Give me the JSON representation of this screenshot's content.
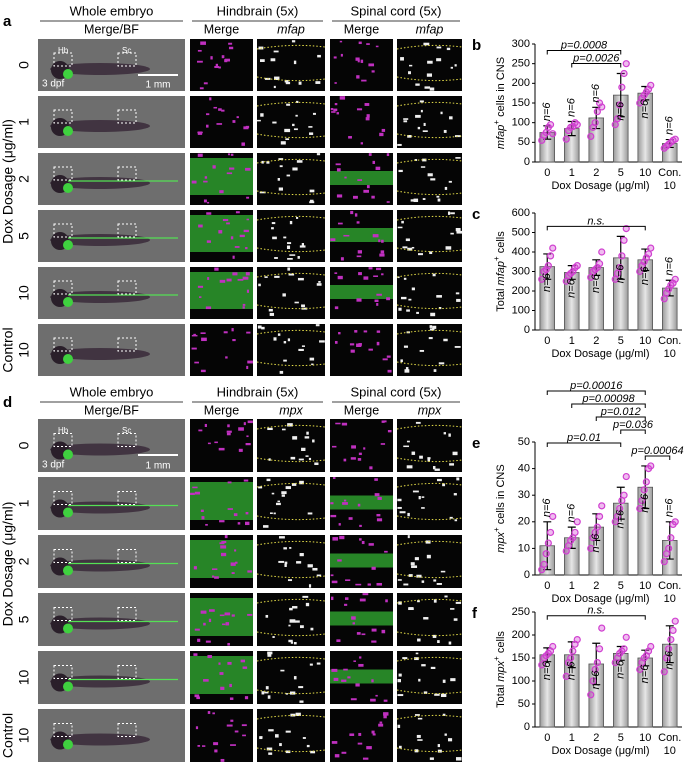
{
  "figure": {
    "panels": [
      {
        "letter": "a",
        "headers": [
          "Whole embryo",
          "Hindbrain (5x)",
          "Spinal cord (5x)"
        ],
        "subheaders": [
          "Merge/BF",
          "Merge",
          "mfap",
          "Merge",
          "mfap"
        ],
        "axis_label": "Dox Dosage (μg/ml)",
        "rows": [
          "0",
          "1",
          "2",
          "5",
          "10",
          "10"
        ],
        "control_label": "Control",
        "image_labels": [
          "Hb",
          "Sc",
          "3 dpf",
          "1 mm"
        ]
      },
      {
        "letter": "d",
        "headers": [
          "Whole embryo",
          "Hindbrain (5x)",
          "Spinal cord (5x)"
        ],
        "subheaders": [
          "Merge/BF",
          "Merge",
          "mpx",
          "Merge",
          "mpx"
        ],
        "axis_label": "Dox Dosage (μg/ml)",
        "rows": [
          "0",
          "1",
          "2",
          "5",
          "10",
          "10"
        ],
        "control_label": "Control",
        "image_labels": [
          "Hb",
          "Sc",
          "3 dpf",
          "1 mm"
        ]
      }
    ]
  },
  "chart_data": [
    {
      "type": "bar",
      "panel": "b",
      "ylabel": [
        {
          "text": "mfap",
          "style": "italic"
        },
        {
          "text": "+",
          "style": "sup"
        },
        {
          "text": " cells in CNS"
        }
      ],
      "xlabel": "Dox Dosage (μg/ml)",
      "categories": [
        "0",
        "1",
        "2",
        "5",
        "10",
        "Con."
      ],
      "category_sublabels": [
        null,
        null,
        null,
        null,
        null,
        "10"
      ],
      "values": [
        75,
        85,
        112,
        170,
        175,
        47
      ],
      "errors": [
        17,
        18,
        27,
        55,
        17,
        10
      ],
      "points": [
        [
          55,
          68,
          75,
          88,
          95,
          72
        ],
        [
          58,
          80,
          88,
          90,
          100,
          95
        ],
        [
          65,
          88,
          100,
          128,
          150,
          140
        ],
        [
          95,
          110,
          145,
          190,
          225,
          250
        ],
        [
          150,
          162,
          170,
          178,
          185,
          195
        ],
        [
          35,
          40,
          45,
          50,
          55,
          58
        ]
      ],
      "n_labels": [
        "n=6",
        "n=6",
        "n=6",
        "n=6",
        "n=6",
        "n=6"
      ],
      "brackets": [
        {
          "label": "p=0.0008",
          "from": "0",
          "to": "5"
        },
        {
          "label": "p=0.0026",
          "from": "1",
          "to": "5"
        }
      ],
      "ylim": [
        0,
        300
      ],
      "yticks": [
        0,
        50,
        100,
        150,
        200,
        250,
        300
      ],
      "color": "#c8c8c8",
      "point_color": "#d040d0"
    },
    {
      "type": "bar",
      "panel": "c",
      "ylabel": [
        {
          "text": "Total "
        },
        {
          "text": "mfap",
          "style": "italic"
        },
        {
          "text": "+",
          "style": "sup"
        },
        {
          "text": " cells"
        }
      ],
      "xlabel": "Dox Dosage (μg/ml)",
      "categories": [
        "0",
        "1",
        "2",
        "5",
        "10",
        "Con."
      ],
      "category_sublabels": [
        null,
        null,
        null,
        null,
        null,
        "10"
      ],
      "values": [
        325,
        295,
        320,
        370,
        360,
        215
      ],
      "errors": [
        65,
        35,
        40,
        110,
        55,
        40
      ],
      "points": [
        [
          260,
          300,
          310,
          330,
          380,
          420
        ],
        [
          250,
          280,
          290,
          300,
          320,
          330
        ],
        [
          270,
          300,
          310,
          320,
          340,
          400
        ],
        [
          260,
          290,
          320,
          380,
          460,
          520
        ],
        [
          300,
          330,
          350,
          370,
          390,
          420
        ],
        [
          160,
          190,
          210,
          230,
          240,
          260
        ]
      ],
      "n_labels": [
        "n=6",
        "n=6",
        "n=6",
        "n=6",
        "n=6",
        "n=6"
      ],
      "brackets": [
        {
          "label": "n.s.",
          "from": "0",
          "to": "10"
        }
      ],
      "ylim": [
        0,
        600
      ],
      "yticks": [
        0,
        100,
        200,
        300,
        400,
        500,
        600
      ],
      "color": "#c8c8c8",
      "point_color": "#d040d0"
    },
    {
      "type": "bar",
      "panel": "e",
      "ylabel": [
        {
          "text": "mpx",
          "style": "italic"
        },
        {
          "text": "+",
          "style": "sup"
        },
        {
          "text": " cells in CNS"
        }
      ],
      "xlabel": "Dox Dosage (μg/ml)",
      "categories": [
        "0",
        "1",
        "2",
        "5",
        "10",
        "Con."
      ],
      "category_sublabels": [
        null,
        null,
        null,
        null,
        null,
        "10"
      ],
      "values": [
        11,
        14,
        18,
        27,
        33,
        13
      ],
      "errors": [
        9,
        4,
        5,
        6,
        8,
        7
      ],
      "points": [
        [
          2,
          4,
          8,
          12,
          16,
          22
        ],
        [
          9,
          11,
          13,
          14,
          16,
          20
        ],
        [
          10,
          14,
          16,
          18,
          22,
          26
        ],
        [
          20,
          22,
          25,
          28,
          30,
          37
        ],
        [
          25,
          28,
          32,
          35,
          40,
          41
        ],
        [
          5,
          8,
          10,
          14,
          19,
          20
        ]
      ],
      "n_labels": [
        "n=6",
        "n=6",
        "n=6",
        "n=6",
        "n=6",
        "n=6"
      ],
      "brackets": [
        {
          "label": "p=0.00016",
          "from": "0",
          "to": "10"
        },
        {
          "label": "p=0.00098",
          "from": "1",
          "to": "10"
        },
        {
          "label": "p=0.012",
          "from": "2",
          "to": "10"
        },
        {
          "label": "p=0.036",
          "from": "5",
          "to": "10"
        },
        {
          "label": "p=0.01",
          "from": "0",
          "to": "5"
        },
        {
          "label": "p=0.00064",
          "from": "10",
          "to": "Con."
        }
      ],
      "ylim": [
        0,
        50
      ],
      "yticks": [
        0,
        10,
        20,
        30,
        40,
        50
      ],
      "color": "#c8c8c8",
      "point_color": "#d040d0"
    },
    {
      "type": "bar",
      "panel": "f",
      "ylabel": [
        {
          "text": "Total "
        },
        {
          "text": "mpx",
          "style": "italic"
        },
        {
          "text": "+",
          "style": "sup"
        },
        {
          "text": " cells"
        }
      ],
      "xlabel": "Dox Dosage (μg/ml)",
      "categories": [
        "0",
        "1",
        "2",
        "5",
        "10",
        "Con."
      ],
      "category_sublabels": [
        null,
        null,
        null,
        null,
        null,
        "10"
      ],
      "values": [
        157,
        157,
        137,
        160,
        150,
        180
      ],
      "errors": [
        15,
        28,
        45,
        15,
        17,
        40
      ],
      "points": [
        [
          135,
          150,
          155,
          160,
          165,
          175
        ],
        [
          110,
          140,
          150,
          165,
          180,
          190
        ],
        [
          70,
          100,
          125,
          140,
          170,
          215
        ],
        [
          140,
          150,
          160,
          165,
          170,
          195
        ],
        [
          125,
          140,
          150,
          155,
          165,
          175
        ],
        [
          120,
          150,
          170,
          190,
          210,
          230
        ]
      ],
      "n_labels": [
        "n=6",
        "n=6",
        "n=6",
        "n=6",
        "n=6",
        "n=6"
      ],
      "brackets": [
        {
          "label": "n.s.",
          "from": "0",
          "to": "10"
        }
      ],
      "ylim": [
        0,
        250
      ],
      "yticks": [
        0,
        50,
        100,
        150,
        200,
        250
      ],
      "color": "#c8c8c8",
      "point_color": "#d040d0"
    }
  ]
}
